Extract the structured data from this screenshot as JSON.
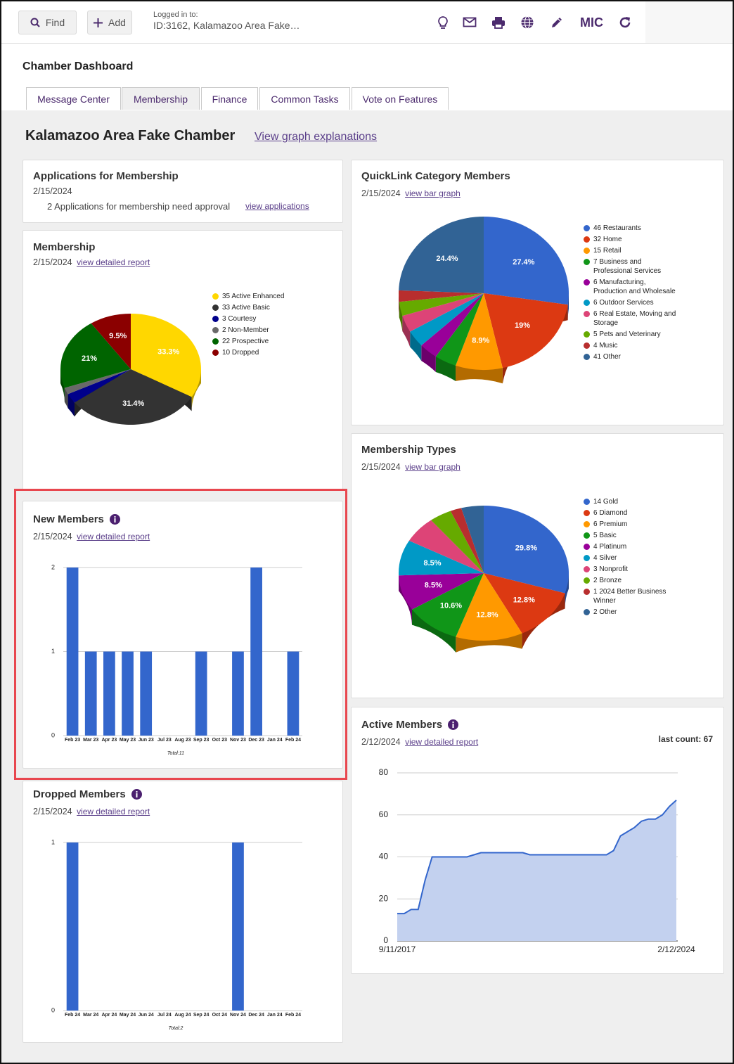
{
  "toolbar": {
    "find": "Find",
    "add": "Add",
    "logged_in_label": "Logged in to:",
    "logged_in_value": "ID:3162, Kalamazoo Area Fake…",
    "mic": "MIC"
  },
  "header": {
    "title": "Chamber Dashboard",
    "tabs": [
      "Message Center",
      "Membership",
      "Finance",
      "Common Tasks",
      "Vote on Features"
    ]
  },
  "dashboard": {
    "title": "Kalamazoo Area Fake Chamber",
    "link": "View graph explanations"
  },
  "applications": {
    "title": "Applications for Membership",
    "date": "2/15/2024",
    "text": "2 Applications for membership need approval",
    "link": "view applications"
  },
  "membership": {
    "title": "Membership",
    "date": "2/15/2024",
    "link": "view detailed report",
    "chart": {
      "type": "pie",
      "categories": [
        "35 Active Enhanced",
        "33 Active Basic",
        "3 Courtesy",
        "2 Non-Member",
        "22 Prospective",
        "10 Dropped"
      ],
      "values": [
        35,
        33,
        3,
        2,
        22,
        10
      ],
      "value_labels": [
        "33.3%",
        "31.4%",
        null,
        null,
        "21%",
        "9.5%"
      ],
      "colors": [
        "#ffd700",
        "#333333",
        "#00008b",
        "#696969",
        "#006400",
        "#8b0000"
      ]
    }
  },
  "new_members": {
    "title": "New Members",
    "date": "2/15/2024",
    "link": "view detailed report",
    "chart": {
      "type": "bar",
      "categories": [
        "Feb 23",
        "Mar 23",
        "Apr 23",
        "May 23",
        "Jun 23",
        "Jul 23",
        "Aug 23",
        "Sep 23",
        "Oct 23",
        "Nov 23",
        "Dec 23",
        "Jan 24",
        "Feb 24"
      ],
      "values": [
        2,
        1,
        1,
        1,
        1,
        0,
        0,
        1,
        0,
        1,
        2,
        0,
        1
      ],
      "color": "#3366cc",
      "ylim": [
        0,
        2
      ],
      "yticks": [
        0,
        1,
        2
      ],
      "grid": true,
      "total": "Total:11"
    }
  },
  "dropped_members": {
    "title": "Dropped Members",
    "date": "2/15/2024",
    "link": "view detailed report",
    "chart": {
      "type": "bar",
      "categories": [
        "Feb 24",
        "Mar 24",
        "Apr 24",
        "May 24",
        "Jun 24",
        "Jul 24",
        "Aug 24",
        "Sep 24",
        "Oct 24",
        "Nov 24",
        "Dec 24",
        "Jan 24",
        "Feb 24"
      ],
      "values": [
        1,
        0,
        0,
        0,
        0,
        0,
        0,
        0,
        0,
        1,
        0,
        0,
        0
      ],
      "color": "#3366cc",
      "ylim": [
        0,
        1
      ],
      "yticks": [
        0,
        1
      ],
      "grid": true,
      "total": "Total:2"
    }
  },
  "quicklink": {
    "title": "QuickLink Category Members",
    "date": "2/15/2024",
    "link": "view bar graph",
    "chart": {
      "type": "pie",
      "categories": [
        "46 Restaurants",
        "32 Home",
        "15 Retail",
        "7 Business and Professional Services",
        "6 Manufacturing, Production and Wholesale",
        "6 Outdoor Services",
        "6 Real Estate, Moving and Storage",
        "5 Pets and Veterinary",
        "4 Music",
        "41 Other"
      ],
      "values": [
        46,
        32,
        15,
        7,
        6,
        6,
        6,
        5,
        4,
        41
      ],
      "value_labels": [
        "27.4%",
        "19%",
        "8.9%",
        null,
        null,
        null,
        null,
        null,
        null,
        "24.4%"
      ],
      "colors": [
        "#3366cc",
        "#dc3912",
        "#ff9900",
        "#109618",
        "#990099",
        "#0099c6",
        "#dd4477",
        "#66aa00",
        "#b82e2e",
        "#316395"
      ]
    }
  },
  "membership_types": {
    "title": "Membership Types",
    "date": "2/15/2024",
    "link": "view bar graph",
    "chart": {
      "type": "pie",
      "categories": [
        "14 Gold",
        "6 Diamond",
        "6 Premium",
        "5 Basic",
        "4 Platinum",
        "4 Silver",
        "3 Nonprofit",
        "2 Bronze",
        "1 2024 Better Business Winner",
        "2 Other"
      ],
      "values": [
        14,
        6,
        6,
        5,
        4,
        4,
        3,
        2,
        1,
        2
      ],
      "value_labels": [
        "29.8%",
        "12.8%",
        "12.8%",
        "10.6%",
        "8.5%",
        "8.5%",
        null,
        null,
        null,
        null
      ],
      "colors": [
        "#3366cc",
        "#dc3912",
        "#ff9900",
        "#109618",
        "#990099",
        "#0099c6",
        "#dd4477",
        "#66aa00",
        "#b82e2e",
        "#316395"
      ]
    }
  },
  "active_members": {
    "title": "Active Members",
    "date": "2/12/2024",
    "link": "view detailed report",
    "last_count": "last count: 67",
    "chart": {
      "type": "line",
      "categories": [
        "9/11/2017",
        null,
        null,
        null,
        null,
        null,
        null,
        null,
        null,
        null,
        null,
        null,
        null,
        null,
        null,
        null,
        null,
        null,
        null,
        null,
        null,
        null,
        null,
        null,
        null,
        null,
        null,
        null,
        null,
        null,
        null,
        null,
        null,
        null,
        null,
        null,
        null,
        null,
        null,
        null,
        "2/12/2024"
      ],
      "values": [
        13,
        13,
        15,
        15,
        29,
        40,
        40,
        40,
        40,
        40,
        40,
        41,
        42,
        42,
        42,
        42,
        42,
        42,
        42,
        41,
        41,
        41,
        41,
        41,
        41,
        41,
        41,
        41,
        41,
        41,
        41,
        43,
        50,
        52,
        54,
        57,
        58,
        58,
        60,
        64,
        67
      ],
      "color": "#3366cc",
      "ylim": [
        0,
        80
      ],
      "yticks": [
        0,
        20,
        40,
        60,
        80
      ],
      "grid": true
    }
  }
}
